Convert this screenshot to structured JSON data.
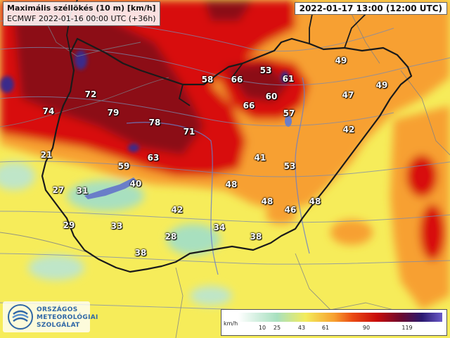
{
  "header": {
    "title": "Maximális széllökés (10 m) [km/h]",
    "model_run": "ECMWF 2022-01-16 00:00 UTC (+36h)",
    "valid_time": "2022-01-17 13:00 (12:00 UTC)"
  },
  "values": [
    "74",
    "72",
    "79",
    "78",
    "58",
    "66",
    "53",
    "61",
    "49",
    "60",
    "47",
    "49",
    "66",
    "57",
    "71",
    "21",
    "63",
    "59",
    "41",
    "53",
    "42",
    "27",
    "31",
    "40",
    "48",
    "48",
    "46",
    "48",
    "42",
    "29",
    "33",
    "34",
    "28",
    "38",
    "38"
  ],
  "legend": {
    "unit": "km/h",
    "ticks": [
      "10",
      "25",
      "43",
      "61",
      "90",
      "119"
    ]
  },
  "logo": {
    "lines": [
      "ORSZÁGOS",
      "METEOROLÓGIAI",
      "SZOLGÁLAT"
    ]
  },
  "colors": {
    "low": "#a8e0bf",
    "yellow": "#f6ec5a",
    "orange": "#f7a030",
    "red": "#d8100c",
    "darkred": "#8c0a14",
    "purple": "#3a2a8a",
    "border": "#1a1a1a"
  }
}
